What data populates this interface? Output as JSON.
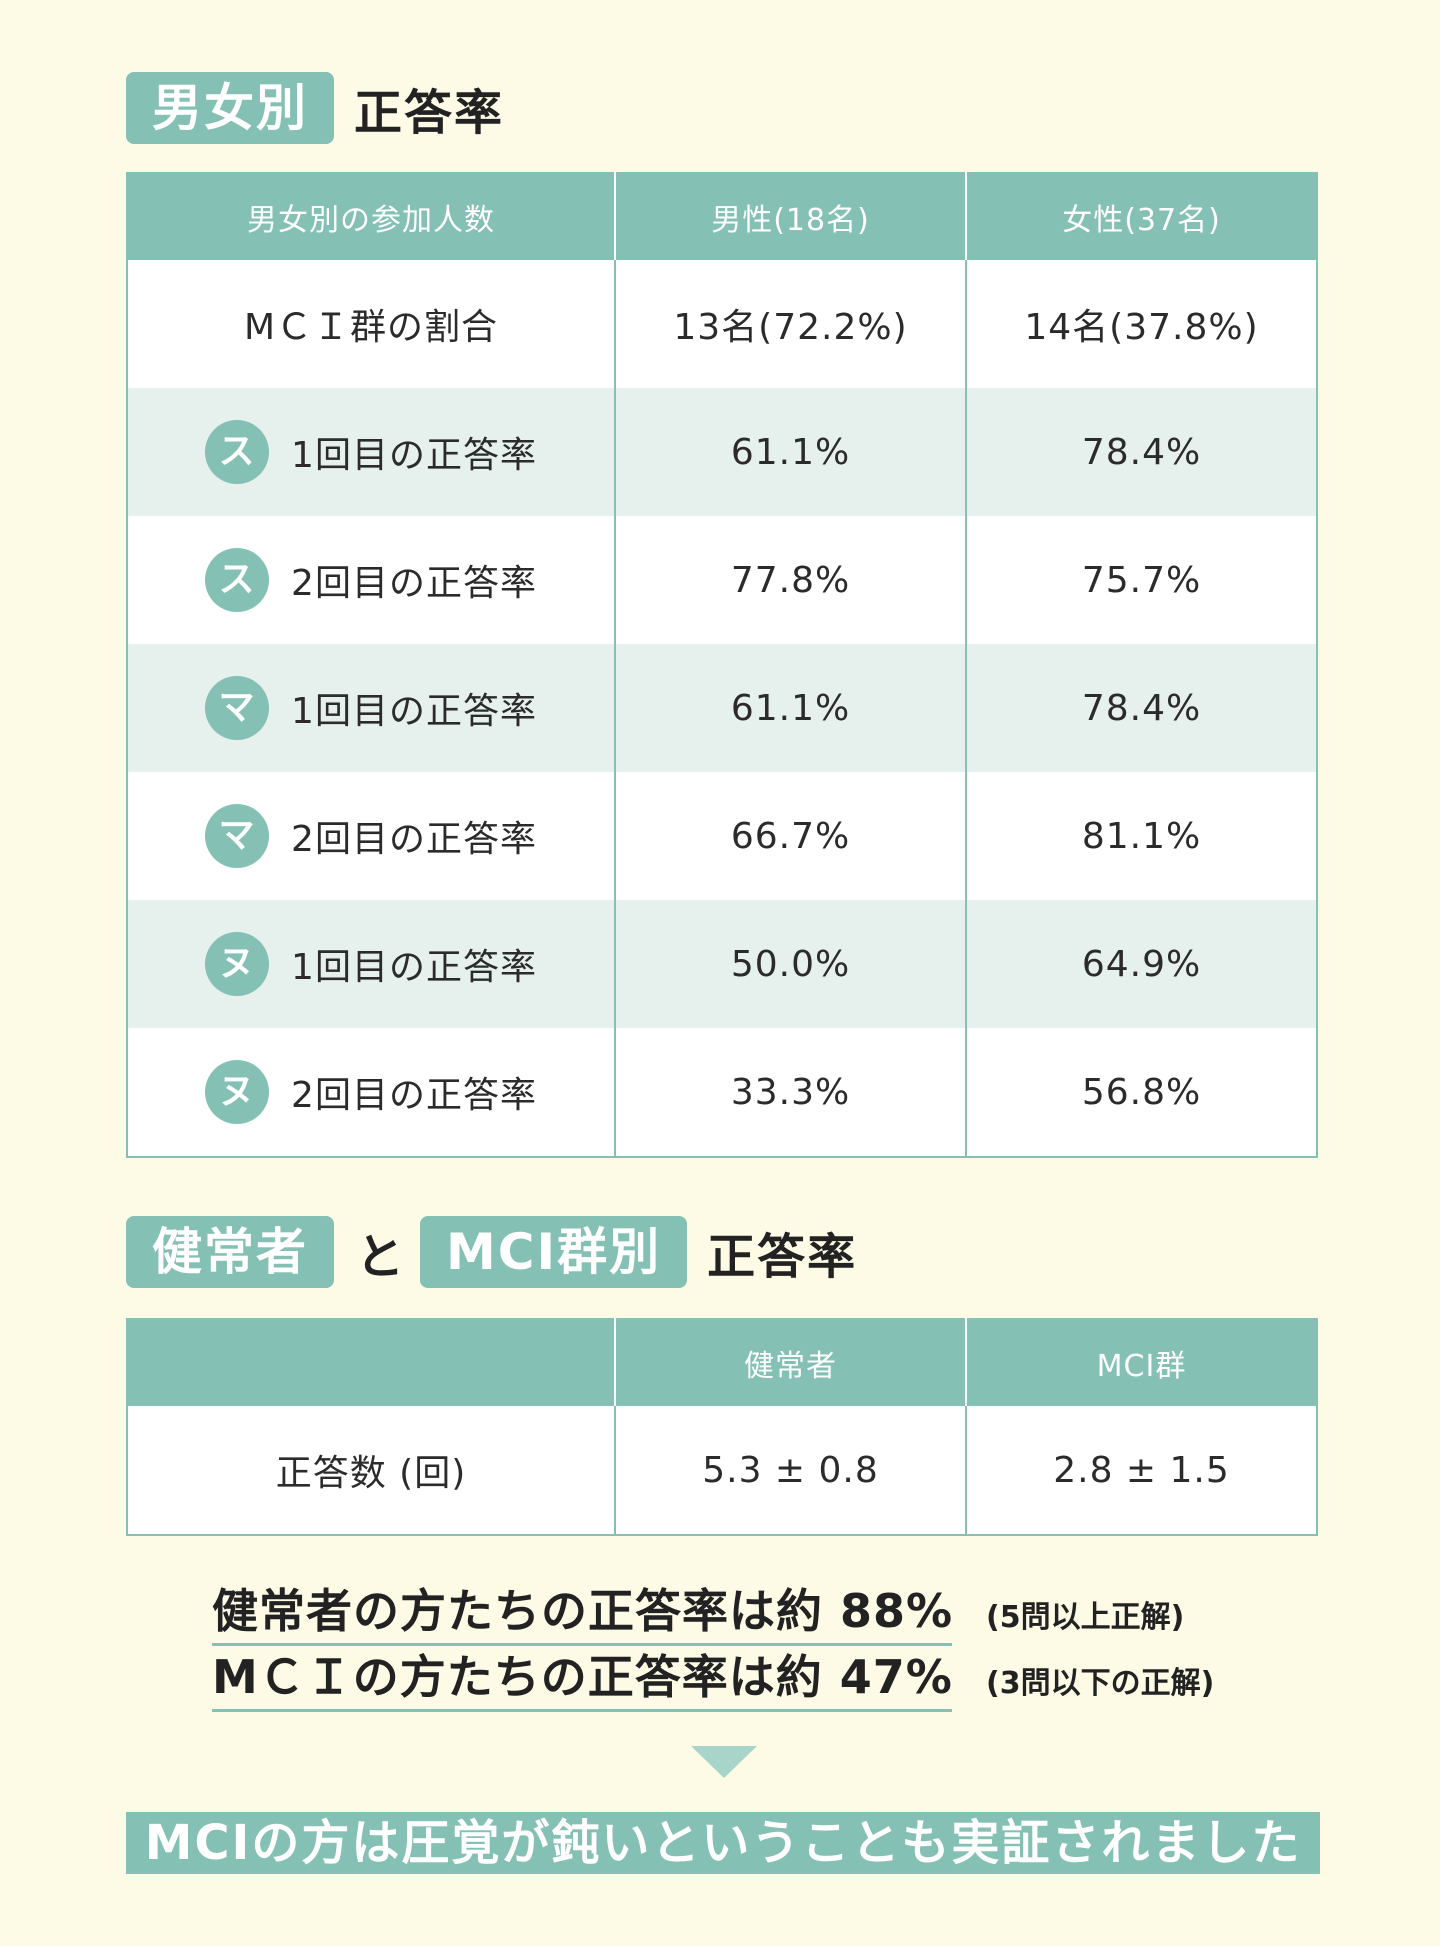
{
  "section1": {
    "tag": "男女別",
    "title": "正答率",
    "headers": [
      "男女別の参加人数",
      "男性(18名)",
      "女性(37名)"
    ],
    "mci_row": {
      "label": "MＣＩ群の割合",
      "male": "13名(72.2%)",
      "female": "14名(37.8%)"
    },
    "rows": [
      {
        "icon": "ス",
        "label": "1回目の正答率",
        "male": "61.1%",
        "female": "78.4%"
      },
      {
        "icon": "ス",
        "label": "2回目の正答率",
        "male": "77.8%",
        "female": "75.7%"
      },
      {
        "icon": "マ",
        "label": "1回目の正答率",
        "male": "61.1%",
        "female": "78.4%"
      },
      {
        "icon": "マ",
        "label": "2回目の正答率",
        "male": "66.7%",
        "female": "81.1%"
      },
      {
        "icon": "ヌ",
        "label": "1回目の正答率",
        "male": "50.0%",
        "female": "64.9%"
      },
      {
        "icon": "ヌ",
        "label": "2回目の正答率",
        "male": "33.3%",
        "female": "56.8%"
      }
    ]
  },
  "section2": {
    "tag1": "健常者",
    "connector": "と",
    "tag2": "MCI群別",
    "title": "正答率",
    "headers": [
      "",
      "健常者",
      "MCI群"
    ],
    "row": {
      "label": "正答数 (回)",
      "healthy": "5.3 ± 0.8",
      "mci": "2.8 ± 1.5"
    }
  },
  "summary": {
    "line1": "健常者の方たちの正答率は約 88%",
    "note1": "(5問以上正解)",
    "line2": "MＣＩの方たちの正答率は約 47%",
    "note2": "(3問以下の正解)"
  },
  "conclusion": "MCIの方は圧覚が鈍いということも実証されました",
  "colors": {
    "accent": "#84c0b4",
    "background": "#fdfae6",
    "row_shade": "#e6f0ec",
    "arrow": "#a8d4ca"
  }
}
